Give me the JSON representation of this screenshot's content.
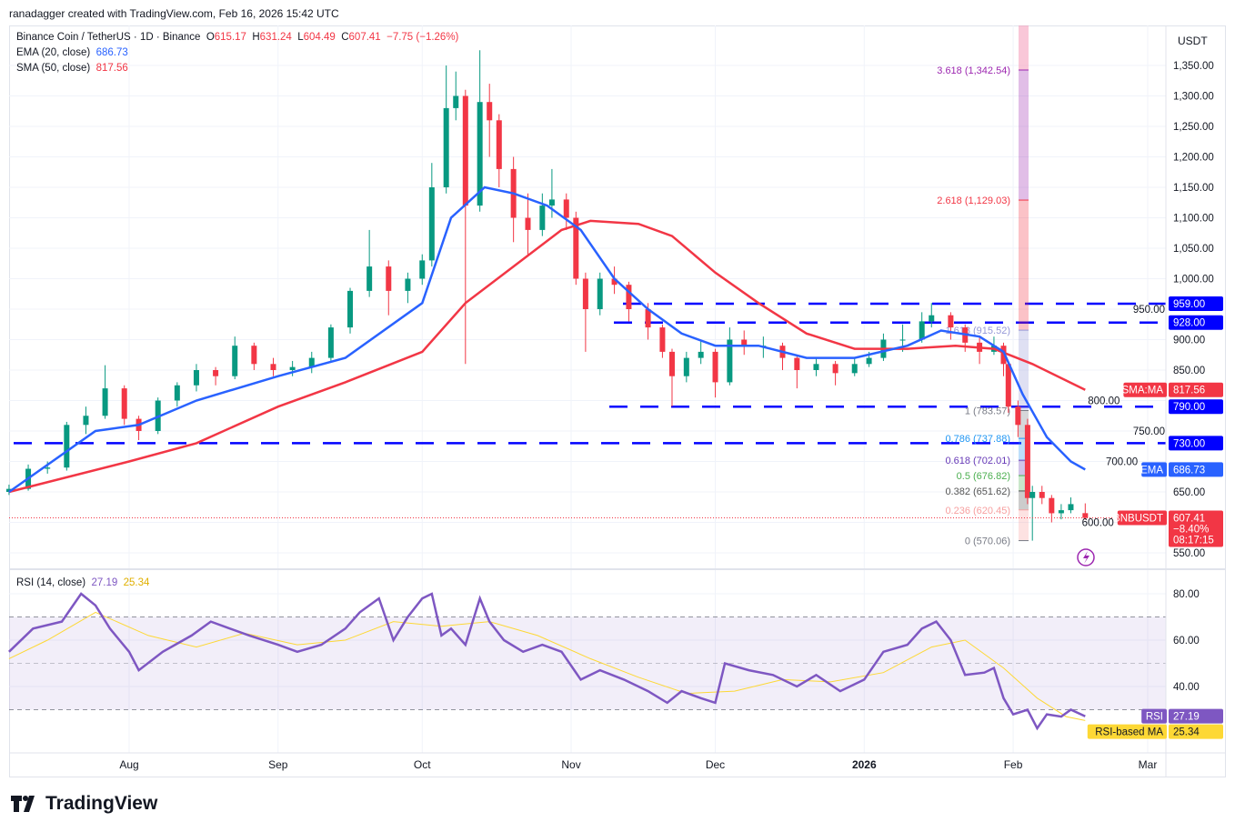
{
  "credit": "ranadagger created with TradingView.com, Feb 16, 2026 15:42 UTC",
  "header": {
    "symbol": "Binance Coin / TetherUS · 1D · Binance",
    "o_label": "O",
    "o": "615.17",
    "h_label": "H",
    "h": "631.24",
    "l_label": "L",
    "l": "604.49",
    "c_label": "C",
    "c": "607.41",
    "change": "−7.75 (−1.26%)"
  },
  "indicators": {
    "ema_label": "EMA (20, close)",
    "ema_value": "686.73",
    "sma_label": "SMA (50, close)",
    "sma_value": "817.56",
    "rsi_label": "RSI (14, close)",
    "rsi_value": "27.19",
    "rsi_ma_value": "25.34"
  },
  "currency": "USDT",
  "tags": {
    "sma_name": "SMA:MA",
    "sma": "817.56",
    "ema_name": "EMA",
    "ema": "686.73",
    "price_name": "BNBUSDT",
    "price": "607.41",
    "price_change": "−8.40%",
    "countdown": "08:17:15",
    "rsi_name": "RSI",
    "rsi": "27.19",
    "rsi_ma_name": "RSI-based MA",
    "rsi_ma": "25.34"
  },
  "levels": [
    {
      "label": "959.00",
      "value": 959
    },
    {
      "label": "928.00",
      "value": 928
    },
    {
      "label": "790.00",
      "value": 790
    },
    {
      "label": "730.00",
      "value": 730
    }
  ],
  "fib": [
    {
      "label": "3.618 (1,342.54)",
      "value": 1342.54,
      "color": "#9c27b0"
    },
    {
      "label": "2.618 (1,129.03)",
      "value": 1129.03,
      "color": "#f23645"
    },
    {
      "label": "1.618 (915.52)",
      "value": 915.52,
      "color": "#9598d8"
    },
    {
      "label": "1 (783.57)",
      "value": 783.57,
      "color": "#787b86"
    },
    {
      "label": "0.786 (737.88)",
      "value": 737.88,
      "color": "#2196f3"
    },
    {
      "label": "0.618 (702.01)",
      "value": 702.01,
      "color": "#673ab7"
    },
    {
      "label": "0.5 (676.82)",
      "value": 676.82,
      "color": "#4caf50"
    },
    {
      "label": "0.382 (651.62)",
      "value": 651.62,
      "color": "#555555"
    },
    {
      "label": "0.236 (620.45)",
      "value": 620.45,
      "color": "#f7a0a0"
    },
    {
      "label": "0 (570.06)",
      "value": 570.06,
      "color": "#787b86"
    }
  ],
  "colors": {
    "up": "#089981",
    "down": "#f23645",
    "ema": "#2962ff",
    "sma": "#f23645",
    "rsi": "#7e57c2",
    "rsi_ma": "#fdd835",
    "level": "#0000ff"
  },
  "time_axis": [
    "Aug",
    "Sep",
    "Oct",
    "Nov",
    "Dec",
    "2026",
    "Feb",
    "Mar"
  ],
  "logo_text": "TradingView",
  "chart_data": {
    "type": "candlestick",
    "title": "Binance Coin / TetherUS · 1D · Binance",
    "ylim": [
      550,
      1375
    ],
    "y_ticks": [
      "1,350.00",
      "1,300.00",
      "1,250.00",
      "1,200.00",
      "1,150.00",
      "1,100.00",
      "1,050.00",
      "1,000.00",
      "950.00",
      "900.00",
      "850.00",
      "800.00",
      "750.00",
      "700.00",
      "650.00",
      "600.00",
      "550.00"
    ],
    "y_tick_values": [
      1350,
      1300,
      1250,
      1200,
      1150,
      1100,
      1050,
      1000,
      950,
      900,
      850,
      800,
      750,
      700,
      650,
      600,
      550
    ],
    "x_ticks": [
      "2025-08-01",
      "2025-09-01",
      "2025-10-01",
      "2025-11-01",
      "2025-12-01",
      "2026-01-01",
      "2026-02-01",
      "2026-03-01"
    ],
    "ohlc": [
      [
        "2025-07-07",
        650,
        662,
        645,
        655
      ],
      [
        "2025-07-11",
        655,
        695,
        652,
        688
      ],
      [
        "2025-07-15",
        688,
        700,
        680,
        690
      ],
      [
        "2025-07-19",
        690,
        765,
        685,
        760
      ],
      [
        "2025-07-23",
        760,
        790,
        745,
        775
      ],
      [
        "2025-07-27",
        775,
        858,
        770,
        820
      ],
      [
        "2025-07-31",
        820,
        825,
        760,
        770
      ],
      [
        "2025-08-03",
        770,
        775,
        735,
        750
      ],
      [
        "2025-08-07",
        750,
        805,
        745,
        800
      ],
      [
        "2025-08-11",
        800,
        830,
        790,
        825
      ],
      [
        "2025-08-15",
        825,
        860,
        815,
        850
      ],
      [
        "2025-08-19",
        850,
        855,
        825,
        840
      ],
      [
        "2025-08-23",
        840,
        905,
        835,
        890
      ],
      [
        "2025-08-27",
        890,
        895,
        850,
        860
      ],
      [
        "2025-08-31",
        860,
        870,
        840,
        850
      ],
      [
        "2025-09-04",
        850,
        865,
        840,
        855
      ],
      [
        "2025-09-08",
        855,
        880,
        845,
        870
      ],
      [
        "2025-09-12",
        870,
        925,
        865,
        920
      ],
      [
        "2025-09-16",
        920,
        985,
        910,
        980
      ],
      [
        "2025-09-20",
        980,
        1080,
        970,
        1020
      ],
      [
        "2025-09-24",
        1020,
        1030,
        940,
        980
      ],
      [
        "2025-09-28",
        980,
        1010,
        960,
        1000
      ],
      [
        "2025-10-01",
        1000,
        1040,
        990,
        1030
      ],
      [
        "2025-10-03",
        1030,
        1190,
        1020,
        1150
      ],
      [
        "2025-10-06",
        1150,
        1350,
        1140,
        1280
      ],
      [
        "2025-10-08",
        1280,
        1340,
        1260,
        1300
      ],
      [
        "2025-10-10",
        1300,
        1310,
        860,
        1120
      ],
      [
        "2025-10-13",
        1120,
        1375,
        1110,
        1290
      ],
      [
        "2025-10-15",
        1290,
        1320,
        1200,
        1260
      ],
      [
        "2025-10-17",
        1260,
        1270,
        1150,
        1180
      ],
      [
        "2025-10-20",
        1180,
        1200,
        1060,
        1100
      ],
      [
        "2025-10-23",
        1100,
        1140,
        1040,
        1080
      ],
      [
        "2025-10-26",
        1080,
        1140,
        1070,
        1120
      ],
      [
        "2025-10-28",
        1120,
        1180,
        1100,
        1130
      ],
      [
        "2025-10-31",
        1130,
        1140,
        1080,
        1100
      ],
      [
        "2025-11-02",
        1100,
        1110,
        990,
        1000
      ],
      [
        "2025-11-04",
        1000,
        1010,
        880,
        950
      ],
      [
        "2025-11-07",
        950,
        1010,
        940,
        1000
      ],
      [
        "2025-11-10",
        1000,
        1020,
        975,
        990
      ],
      [
        "2025-11-13",
        990,
        995,
        930,
        950
      ],
      [
        "2025-11-17",
        950,
        960,
        900,
        920
      ],
      [
        "2025-11-20",
        920,
        925,
        870,
        880
      ],
      [
        "2025-11-22",
        880,
        885,
        790,
        840
      ],
      [
        "2025-11-25",
        840,
        880,
        830,
        870
      ],
      [
        "2025-11-28",
        870,
        900,
        860,
        880
      ],
      [
        "2025-12-01",
        880,
        885,
        805,
        830
      ],
      [
        "2025-12-04",
        830,
        920,
        825,
        900
      ],
      [
        "2025-12-07",
        900,
        915,
        875,
        890
      ],
      [
        "2025-12-11",
        890,
        905,
        870,
        890
      ],
      [
        "2025-12-15",
        890,
        895,
        850,
        870
      ],
      [
        "2025-12-18",
        870,
        875,
        820,
        850
      ],
      [
        "2025-12-22",
        850,
        870,
        840,
        860
      ],
      [
        "2025-12-26",
        860,
        865,
        825,
        845
      ],
      [
        "2025-12-30",
        845,
        870,
        840,
        860
      ],
      [
        "2026-01-02",
        860,
        880,
        855,
        870
      ],
      [
        "2026-01-05",
        870,
        910,
        865,
        900
      ],
      [
        "2026-01-09",
        900,
        925,
        880,
        900
      ],
      [
        "2026-01-13",
        900,
        945,
        895,
        930
      ],
      [
        "2026-01-15",
        930,
        960,
        920,
        940
      ],
      [
        "2026-01-19",
        940,
        945,
        900,
        920
      ],
      [
        "2026-01-22",
        920,
        925,
        880,
        895
      ],
      [
        "2026-01-25",
        895,
        905,
        860,
        880
      ],
      [
        "2026-01-28",
        880,
        905,
        875,
        890
      ],
      [
        "2026-01-30",
        890,
        895,
        840,
        860
      ],
      [
        "2026-01-31",
        860,
        865,
        780,
        790
      ],
      [
        "2026-02-02",
        790,
        800,
        740,
        760
      ],
      [
        "2026-02-04",
        760,
        770,
        630,
        640
      ],
      [
        "2026-02-05",
        640,
        660,
        570,
        650
      ],
      [
        "2026-02-07",
        650,
        660,
        630,
        640
      ],
      [
        "2026-02-09",
        640,
        645,
        600,
        615
      ],
      [
        "2026-02-11",
        615,
        630,
        605,
        620
      ],
      [
        "2026-02-13",
        620,
        641,
        615,
        630
      ],
      [
        "2026-02-16",
        615.17,
        631.24,
        604.49,
        607.41
      ]
    ],
    "ema20": [
      [
        "2025-07-07",
        650
      ],
      [
        "2025-07-25",
        750
      ],
      [
        "2025-08-03",
        760
      ],
      [
        "2025-08-15",
        800
      ],
      [
        "2025-09-01",
        840
      ],
      [
        "2025-09-15",
        870
      ],
      [
        "2025-10-01",
        960
      ],
      [
        "2025-10-07",
        1100
      ],
      [
        "2025-10-14",
        1150
      ],
      [
        "2025-10-20",
        1140
      ],
      [
        "2025-10-27",
        1120
      ],
      [
        "2025-11-03",
        1080
      ],
      [
        "2025-11-10",
        1000
      ],
      [
        "2025-11-17",
        950
      ],
      [
        "2025-11-24",
        910
      ],
      [
        "2025-12-01",
        890
      ],
      [
        "2025-12-10",
        890
      ],
      [
        "2025-12-20",
        870
      ],
      [
        "2025-12-30",
        870
      ],
      [
        "2026-01-10",
        890
      ],
      [
        "2026-01-17",
        915
      ],
      [
        "2026-01-25",
        905
      ],
      [
        "2026-01-30",
        880
      ],
      [
        "2026-02-03",
        810
      ],
      [
        "2026-02-08",
        740
      ],
      [
        "2026-02-13",
        700
      ],
      [
        "2026-02-16",
        686.73
      ]
    ],
    "sma50": [
      [
        "2025-07-07",
        650
      ],
      [
        "2025-08-01",
        700
      ],
      [
        "2025-08-15",
        730
      ],
      [
        "2025-09-01",
        790
      ],
      [
        "2025-09-15",
        830
      ],
      [
        "2025-10-01",
        880
      ],
      [
        "2025-10-10",
        960
      ],
      [
        "2025-10-20",
        1020
      ],
      [
        "2025-10-30",
        1080
      ],
      [
        "2025-11-05",
        1095
      ],
      [
        "2025-11-15",
        1090
      ],
      [
        "2025-11-22",
        1070
      ],
      [
        "2025-12-01",
        1010
      ],
      [
        "2025-12-10",
        960
      ],
      [
        "2025-12-20",
        910
      ],
      [
        "2025-12-30",
        885
      ],
      [
        "2026-01-10",
        885
      ],
      [
        "2026-01-20",
        890
      ],
      [
        "2026-01-28",
        885
      ],
      [
        "2026-02-05",
        860
      ],
      [
        "2026-02-16",
        817.56
      ]
    ],
    "rsi": {
      "ylim": [
        20,
        90
      ],
      "bands": [
        70,
        50,
        30
      ],
      "y_ticks": [
        "80.00",
        "60.00",
        "40.00"
      ],
      "y_tick_values": [
        80,
        60,
        40
      ],
      "rsi": [
        [
          "2025-07-07",
          55
        ],
        [
          "2025-07-12",
          65
        ],
        [
          "2025-07-18",
          68
        ],
        [
          "2025-07-22",
          80
        ],
        [
          "2025-07-25",
          75
        ],
        [
          "2025-07-28",
          65
        ],
        [
          "2025-08-01",
          55
        ],
        [
          "2025-08-03",
          47
        ],
        [
          "2025-08-08",
          55
        ],
        [
          "2025-08-14",
          62
        ],
        [
          "2025-08-18",
          68
        ],
        [
          "2025-08-22",
          65
        ],
        [
          "2025-08-26",
          62
        ],
        [
          "2025-09-01",
          58
        ],
        [
          "2025-09-05",
          55
        ],
        [
          "2025-09-10",
          58
        ],
        [
          "2025-09-15",
          65
        ],
        [
          "2025-09-18",
          72
        ],
        [
          "2025-09-22",
          78
        ],
        [
          "2025-09-25",
          60
        ],
        [
          "2025-09-28",
          70
        ],
        [
          "2025-10-01",
          78
        ],
        [
          "2025-10-03",
          80
        ],
        [
          "2025-10-05",
          62
        ],
        [
          "2025-10-07",
          65
        ],
        [
          "2025-10-10",
          58
        ],
        [
          "2025-10-13",
          78
        ],
        [
          "2025-10-15",
          68
        ],
        [
          "2025-10-18",
          60
        ],
        [
          "2025-10-22",
          55
        ],
        [
          "2025-10-26",
          58
        ],
        [
          "2025-10-30",
          55
        ],
        [
          "2025-11-03",
          43
        ],
        [
          "2025-11-07",
          47
        ],
        [
          "2025-11-12",
          43
        ],
        [
          "2025-11-17",
          38
        ],
        [
          "2025-11-21",
          33
        ],
        [
          "2025-11-24",
          38
        ],
        [
          "2025-11-28",
          35
        ],
        [
          "2025-12-01",
          33
        ],
        [
          "2025-12-03",
          50
        ],
        [
          "2025-12-08",
          47
        ],
        [
          "2025-12-13",
          45
        ],
        [
          "2025-12-18",
          40
        ],
        [
          "2025-12-22",
          45
        ],
        [
          "2025-12-27",
          38
        ],
        [
          "2026-01-01",
          43
        ],
        [
          "2026-01-05",
          55
        ],
        [
          "2026-01-10",
          58
        ],
        [
          "2026-01-13",
          65
        ],
        [
          "2026-01-16",
          68
        ],
        [
          "2026-01-19",
          60
        ],
        [
          "2026-01-22",
          45
        ],
        [
          "2026-01-26",
          46
        ],
        [
          "2026-01-28",
          48
        ],
        [
          "2026-01-30",
          35
        ],
        [
          "2026-02-01",
          28
        ],
        [
          "2026-02-04",
          30
        ],
        [
          "2026-02-06",
          22
        ],
        [
          "2026-02-08",
          28
        ],
        [
          "2026-02-11",
          27
        ],
        [
          "2026-02-13",
          30
        ],
        [
          "2026-02-16",
          27.19
        ]
      ],
      "rsi_ma": [
        [
          "2025-07-07",
          52
        ],
        [
          "2025-07-15",
          60
        ],
        [
          "2025-07-25",
          72
        ],
        [
          "2025-08-05",
          62
        ],
        [
          "2025-08-15",
          57
        ],
        [
          "2025-08-25",
          63
        ],
        [
          "2025-09-05",
          58
        ],
        [
          "2025-09-15",
          60
        ],
        [
          "2025-09-25",
          68
        ],
        [
          "2025-10-05",
          66
        ],
        [
          "2025-10-15",
          68
        ],
        [
          "2025-10-25",
          62
        ],
        [
          "2025-11-05",
          52
        ],
        [
          "2025-11-15",
          44
        ],
        [
          "2025-11-25",
          37
        ],
        [
          "2025-12-05",
          38
        ],
        [
          "2025-12-15",
          43
        ],
        [
          "2025-12-25",
          42
        ],
        [
          "2026-01-05",
          46
        ],
        [
          "2026-01-15",
          57
        ],
        [
          "2026-01-22",
          60
        ],
        [
          "2026-01-30",
          48
        ],
        [
          "2026-02-06",
          35
        ],
        [
          "2026-02-12",
          27
        ],
        [
          "2026-02-16",
          25.34
        ]
      ]
    }
  }
}
